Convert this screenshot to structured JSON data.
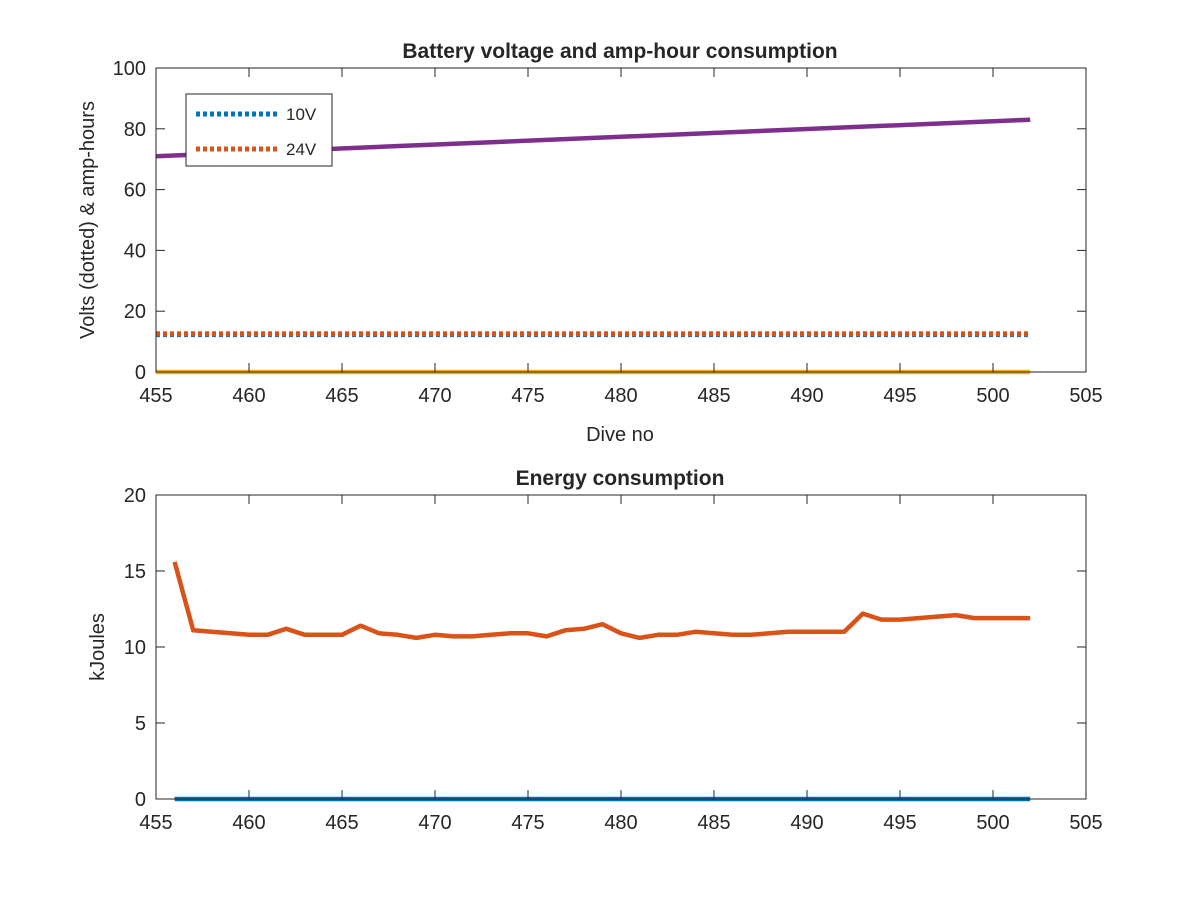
{
  "chart_data": [
    {
      "type": "line",
      "title": "Battery voltage and amp-hour consumption",
      "xlabel": "Dive no",
      "ylabel": "Volts (dotted) & amp-hours",
      "xlim": [
        455,
        505
      ],
      "ylim": [
        0,
        100
      ],
      "xticks": [
        455,
        460,
        465,
        470,
        475,
        480,
        485,
        490,
        495,
        500,
        505
      ],
      "yticks": [
        0,
        20,
        40,
        60,
        80,
        100
      ],
      "grid": false,
      "legend_position": "top-left",
      "series": [
        {
          "name": "10V",
          "style": "dotted",
          "color": "#0072BD",
          "x": [
            455,
            502
          ],
          "y": [
            12.3,
            12.3
          ]
        },
        {
          "name": "24V",
          "style": "dotted",
          "color": "#D95319",
          "x": [
            455,
            502
          ],
          "y": [
            12.6,
            12.6
          ]
        },
        {
          "style": "solid",
          "color": "#EDB120",
          "x": [
            455,
            502
          ],
          "y": [
            0,
            0
          ]
        },
        {
          "style": "solid",
          "color": "#7E2F8E",
          "x": [
            455,
            502
          ],
          "y": [
            71,
            83
          ]
        }
      ]
    },
    {
      "type": "line",
      "title": "Energy consumption",
      "xlabel": "",
      "ylabel": "kJoules",
      "xlim": [
        455,
        505
      ],
      "ylim": [
        0,
        20
      ],
      "xticks": [
        455,
        460,
        465,
        470,
        475,
        480,
        485,
        490,
        495,
        500,
        505
      ],
      "yticks": [
        0,
        5,
        10,
        15,
        20
      ],
      "grid": false,
      "series": [
        {
          "style": "solid",
          "color": "#0072BD",
          "x": [
            456,
            502
          ],
          "y": [
            0,
            0
          ]
        },
        {
          "style": "solid",
          "color": "#D95319",
          "x": [
            456,
            457,
            458,
            459,
            460,
            461,
            462,
            463,
            464,
            465,
            466,
            467,
            468,
            469,
            470,
            471,
            472,
            473,
            474,
            475,
            476,
            477,
            478,
            479,
            480,
            481,
            482,
            483,
            484,
            485,
            486,
            487,
            488,
            489,
            490,
            491,
            492,
            493,
            494,
            495,
            496,
            497,
            498,
            499,
            500,
            501,
            502
          ],
          "y": [
            15.6,
            11.1,
            11.0,
            10.9,
            10.8,
            10.8,
            11.2,
            10.8,
            10.8,
            10.8,
            11.4,
            10.9,
            10.8,
            10.6,
            10.8,
            10.7,
            10.7,
            10.8,
            10.9,
            10.9,
            10.7,
            11.1,
            11.2,
            11.5,
            10.9,
            10.6,
            10.8,
            10.8,
            11.0,
            10.9,
            10.8,
            10.8,
            10.9,
            11.0,
            11.0,
            11.0,
            11.0,
            12.2,
            11.8,
            11.8,
            11.9,
            12.0,
            12.1,
            11.9,
            11.9,
            11.9,
            11.9
          ]
        }
      ]
    }
  ]
}
